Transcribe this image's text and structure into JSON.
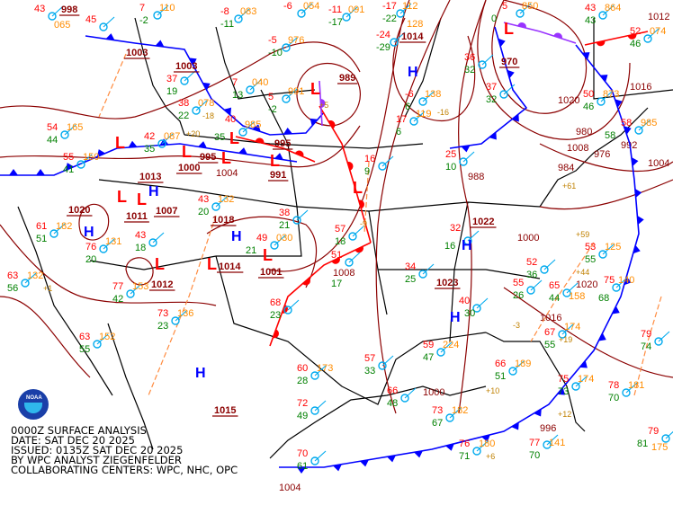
{
  "title_block": {
    "line1": "0000Z SURFACE ANALYSIS",
    "line2": "DATE: SAT DEC 20 2025",
    "line3": "ISSUED: 0135Z SAT DEC 20 2025",
    "line4": "BY WPC ANALYST ZIEGENFELDER",
    "line5": "COLLABORATING CENTERS: WPC, NHC, OPC"
  },
  "logo": {
    "text": "NOAA",
    "icon": "noaa-logo"
  },
  "colors": {
    "isobar": "#8b0000",
    "cold_front": "#0000ff",
    "warm_front": "#ff0000",
    "occluded_front": "#9933ff",
    "trough": "#ff8c40",
    "high": "#0000ff",
    "low": "#ff0000",
    "temperature": "#ff0000",
    "dewpoint": "#008000",
    "pressure": "#ff8c00",
    "station": "#00aaee",
    "border": "#000000"
  },
  "highs": [
    {
      "symbol": "H"
    },
    {
      "symbol": "H"
    },
    {
      "symbol": "H"
    },
    {
      "symbol": "H"
    },
    {
      "symbol": "H"
    },
    {
      "symbol": "H"
    },
    {
      "symbol": "H"
    }
  ],
  "lows": [
    {
      "symbol": "L"
    },
    {
      "symbol": "L"
    },
    {
      "symbol": "L"
    },
    {
      "symbol": "L"
    },
    {
      "symbol": "L"
    },
    {
      "symbol": "L"
    },
    {
      "symbol": "L"
    },
    {
      "symbol": "L"
    },
    {
      "symbol": "L"
    },
    {
      "symbol": "L"
    },
    {
      "symbol": "L"
    },
    {
      "symbol": "L"
    },
    {
      "symbol": "L"
    }
  ],
  "center_pressures": [
    "998",
    "1003",
    "1003",
    "1014",
    "989",
    "970",
    "1000",
    "995",
    "995",
    "991",
    "1013",
    "1011",
    "1007",
    "1018",
    "1014",
    "1001",
    "1012",
    "1020",
    "1022",
    "1023",
    "1015"
  ],
  "isobar_labels": [
    "1004",
    "1008",
    "1000",
    "1016",
    "1020",
    "1004",
    "1008",
    "1012",
    "1016",
    "1020",
    "976",
    "984",
    "980",
    "988",
    "992",
    "996",
    "1000",
    "1004"
  ],
  "stations": [
    {
      "t": "43",
      "td": "",
      "p": "065"
    },
    {
      "t": "45",
      "td": "",
      "p": ""
    },
    {
      "t": "7",
      "td": "-2",
      "p": "110"
    },
    {
      "t": "-6",
      "td": "",
      "p": "054"
    },
    {
      "t": "-11",
      "td": "-17",
      "p": "091"
    },
    {
      "t": "-17",
      "td": "-22",
      "p": "112"
    },
    {
      "t": "5",
      "td": "0",
      "p": "850"
    },
    {
      "t": "43",
      "td": "43",
      "p": "864"
    },
    {
      "t": "-8",
      "td": "-11",
      "p": "083"
    },
    {
      "t": "-5",
      "td": "-10",
      "p": "976"
    },
    {
      "t": "7",
      "td": "13",
      "p": "040"
    },
    {
      "t": "5",
      "td": "-2",
      "p": "991"
    },
    {
      "t": "37",
      "td": "19",
      "p": ""
    },
    {
      "t": "38",
      "td": "22",
      "p": "078"
    },
    {
      "t": "40",
      "td": "35",
      "p": "985"
    },
    {
      "t": "42",
      "td": "35",
      "p": "087"
    },
    {
      "t": "-24",
      "td": "-29",
      "p": "128"
    },
    {
      "t": "-6",
      "td": "6",
      "p": "138"
    },
    {
      "t": "17",
      "td": "6",
      "p": "119"
    },
    {
      "t": "16",
      "td": "9",
      "p": ""
    },
    {
      "t": "25",
      "td": "10",
      "p": ""
    },
    {
      "t": "36",
      "td": "32",
      "p": ""
    },
    {
      "t": "37",
      "td": "32",
      "p": ""
    },
    {
      "t": "50",
      "td": "46",
      "p": "873"
    },
    {
      "t": "58",
      "td": "58",
      "p": "985"
    },
    {
      "t": "52",
      "td": "46",
      "p": "074"
    },
    {
      "t": "54",
      "td": "44",
      "p": "165"
    },
    {
      "t": "55",
      "td": "41",
      "p": "150"
    },
    {
      "t": "61",
      "td": "51",
      "p": "182"
    },
    {
      "t": "63",
      "td": "56",
      "p": "132"
    },
    {
      "t": "76",
      "td": "20",
      "p": "131"
    },
    {
      "t": "77",
      "td": "42",
      "p": "153"
    },
    {
      "t": "73",
      "td": "23",
      "p": "136"
    },
    {
      "t": "63",
      "td": "55",
      "p": "152"
    },
    {
      "t": "43",
      "td": "20",
      "p": "132"
    },
    {
      "t": "49",
      "td": "21",
      "p": "030"
    },
    {
      "t": "38",
      "td": "21",
      "p": ""
    },
    {
      "t": "51",
      "td": "17",
      "p": ""
    },
    {
      "t": "43",
      "td": "18",
      "p": ""
    },
    {
      "t": "32",
      "td": "16",
      "p": ""
    },
    {
      "t": "34",
      "td": "25",
      "p": ""
    },
    {
      "t": "40",
      "td": "30",
      "p": ""
    },
    {
      "t": "55",
      "td": "26",
      "p": ""
    },
    {
      "t": "52",
      "td": "36",
      "p": ""
    },
    {
      "t": "65",
      "td": "44",
      "p": "158"
    },
    {
      "t": "75",
      "td": "68",
      "p": "140"
    },
    {
      "t": "67",
      "td": "55",
      "p": "174"
    },
    {
      "t": "59",
      "td": "47",
      "p": "224"
    },
    {
      "t": "66",
      "td": "51",
      "p": "189"
    },
    {
      "t": "75",
      "td": "73",
      "p": "174"
    },
    {
      "t": "79",
      "td": "74",
      "p": ""
    },
    {
      "t": "78",
      "td": "70",
      "p": "181"
    },
    {
      "t": "60",
      "td": "28",
      "p": "173"
    },
    {
      "t": "72",
      "td": "49",
      "p": ""
    },
    {
      "t": "70",
      "td": "61",
      "p": ""
    },
    {
      "t": "57",
      "td": "33",
      "p": ""
    },
    {
      "t": "66",
      "td": "48",
      "p": ""
    },
    {
      "t": "73",
      "td": "67",
      "p": "182"
    },
    {
      "t": "77",
      "td": "70",
      "p": "141"
    },
    {
      "t": "68",
      "td": "23",
      "p": ""
    },
    {
      "t": "57",
      "td": "18",
      "p": ""
    },
    {
      "t": "53",
      "td": "55",
      "p": "125"
    },
    {
      "t": "76",
      "td": "71",
      "p": "180"
    },
    {
      "t": "79",
      "td": "81",
      "p": "175"
    }
  ],
  "pressure_tendencies": [
    "+20",
    "+5",
    "+61",
    "+59",
    "+44",
    "+19",
    "+12",
    "+10",
    "+6",
    "+1",
    "-18",
    "-16",
    "-9",
    "-3"
  ]
}
